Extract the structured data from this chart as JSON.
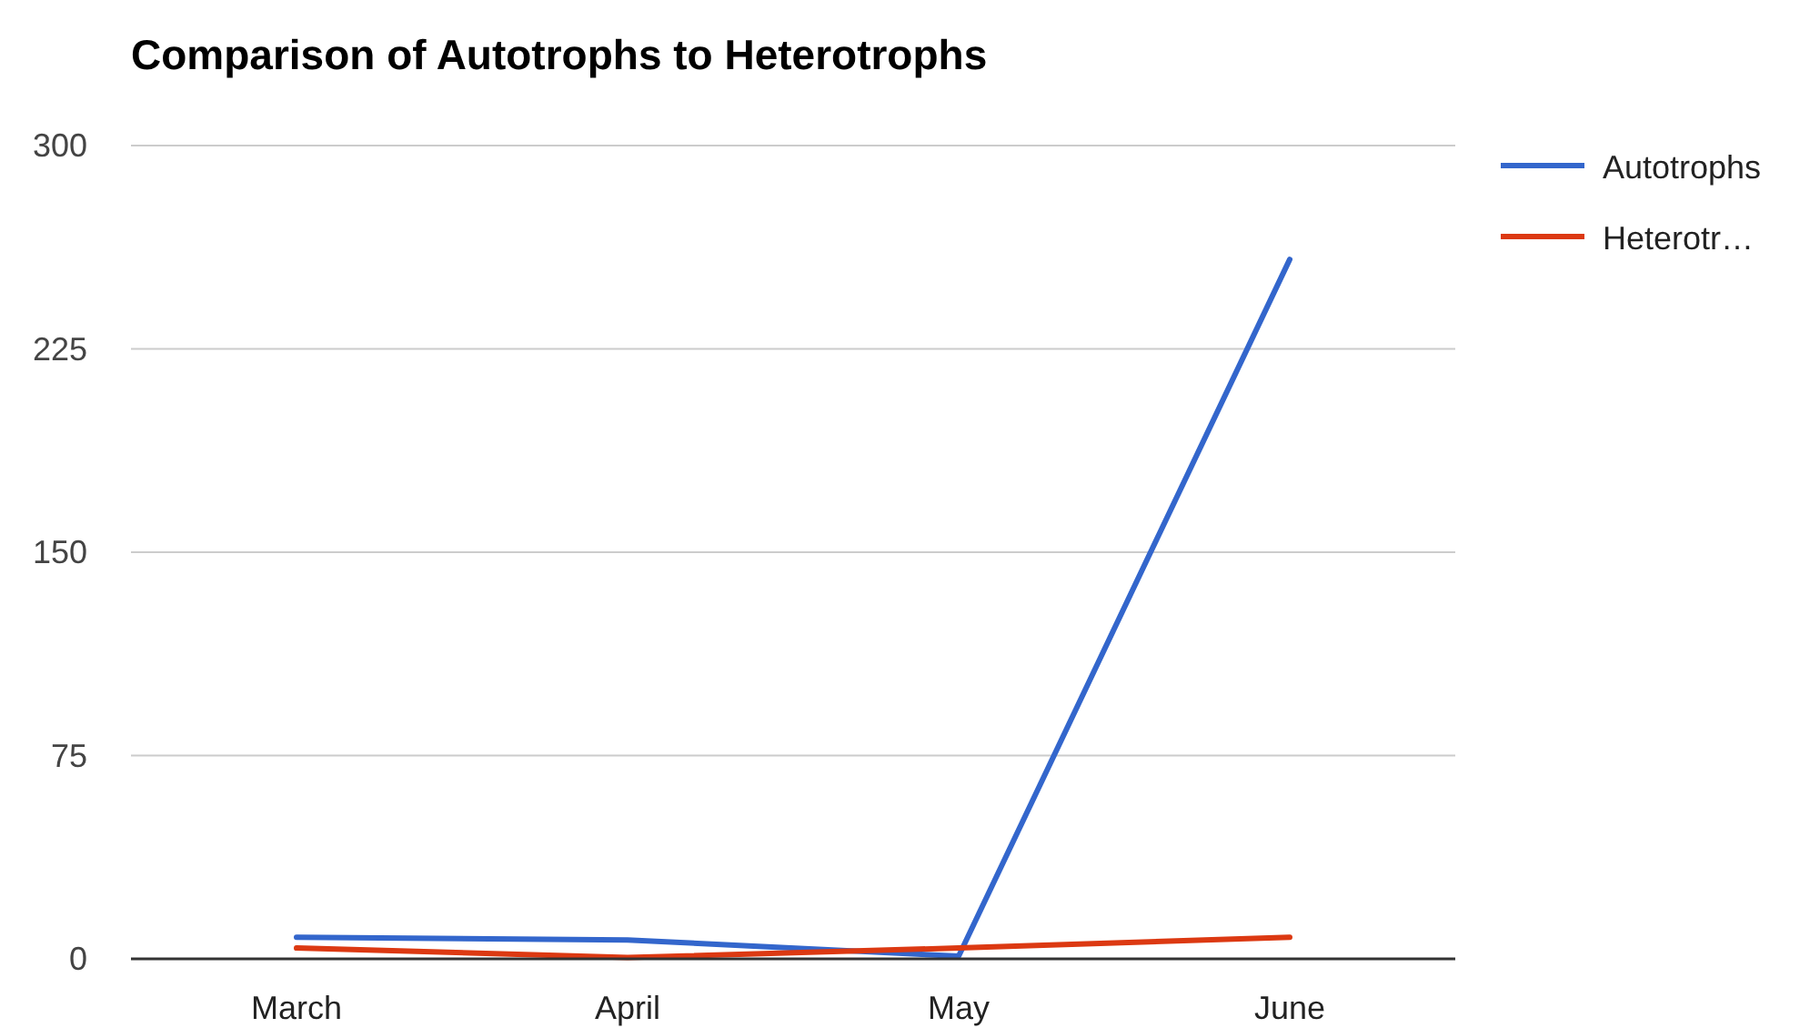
{
  "chart_data": {
    "type": "line",
    "title": "Comparison of Autotrophs to Heterotrophs",
    "categories": [
      "March",
      "April",
      "May",
      "June"
    ],
    "series": [
      {
        "name": "Autotrophs",
        "color": "#3366cc",
        "values": [
          8,
          7,
          1,
          258
        ]
      },
      {
        "name": "Heterotr…",
        "color": "#dc3912",
        "values": [
          4,
          0.5,
          4,
          8
        ]
      }
    ],
    "ylim": [
      0,
      300
    ],
    "yticks": [
      0,
      75,
      150,
      225,
      300
    ],
    "grid": "y",
    "legend": "top right"
  }
}
